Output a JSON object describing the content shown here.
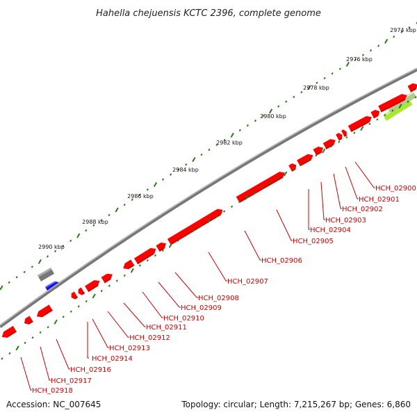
{
  "title": "Hahella chejuensis KCTC 2396, complete genome",
  "accession": "Accession: NC_007645",
  "summary": "Topology: circular; Length: 7,215,267 bp; Genes: 6,860",
  "colors": {
    "gene": "#ff0000",
    "gene_dark": "#cc0000",
    "backbone": "#888888",
    "tick": "#2a7a1a",
    "label": "#cc0000",
    "other_gray": "#777777",
    "other_blue": "#1010e8",
    "other_olive": "#b5c98a",
    "other_lime": "#a8e830"
  },
  "kbp_labels": [
    {
      "kbp": 2974,
      "text": "2974 kbp"
    },
    {
      "kbp": 2976,
      "text": "2976 kbp"
    },
    {
      "kbp": 2978,
      "text": "2978 kbp"
    },
    {
      "kbp": 2980,
      "text": "2980 kbp"
    },
    {
      "kbp": 2982,
      "text": "2982 kbp"
    },
    {
      "kbp": 2984,
      "text": "2984 kbp"
    },
    {
      "kbp": 2986,
      "text": "2986 kbp"
    },
    {
      "kbp": 2988,
      "text": "2988 kbp"
    },
    {
      "kbp": 2990,
      "text": "2990 kbp"
    }
  ],
  "gene_labels": [
    "HCH_02900",
    "HCH_02901",
    "HCH_02902",
    "HCH_02903",
    "HCH_02904",
    "HCH_02905",
    "HCH_02906",
    "HCH_02907",
    "HCH_02908",
    "HCH_02909",
    "HCH_02910",
    "HCH_02911",
    "HCH_02912",
    "HCH_02913",
    "HCH_02914",
    "HCH_02916",
    "HCH_02917",
    "HCH_02918"
  ]
}
